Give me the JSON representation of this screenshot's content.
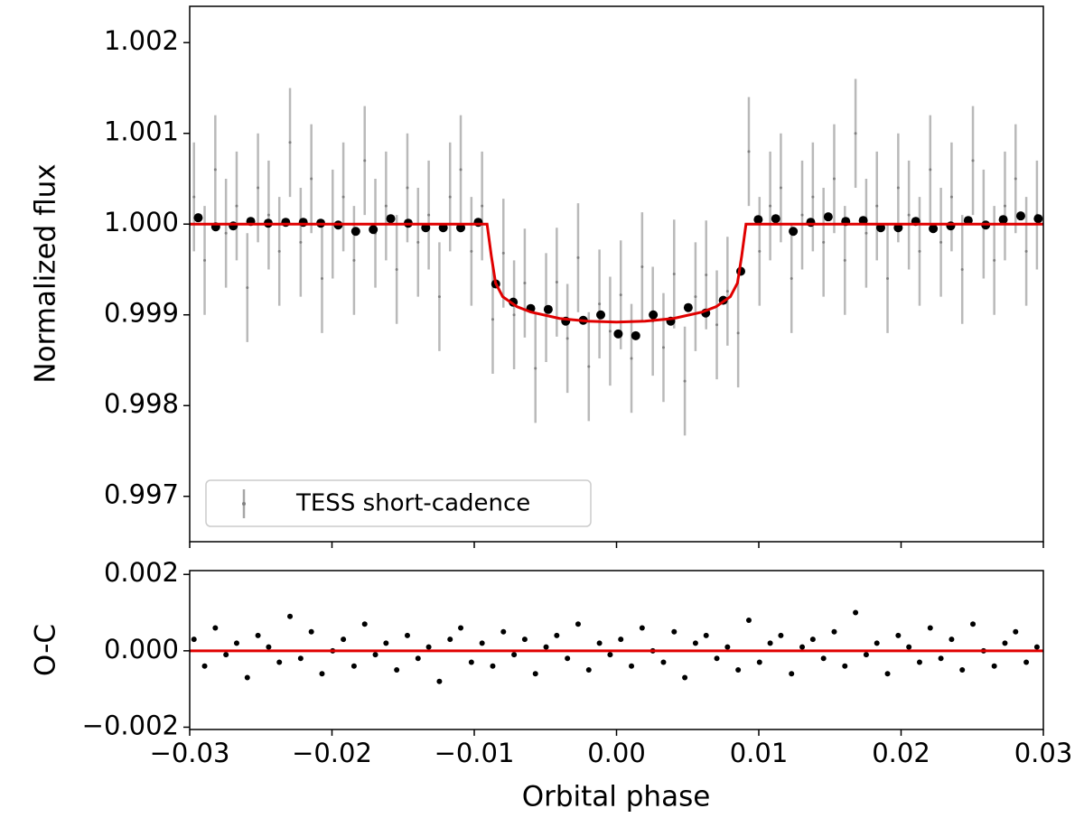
{
  "chart_data": [
    {
      "type": "scatter",
      "ylabel": "Normalized flux",
      "xlim": [
        -0.03,
        0.03
      ],
      "ylim": [
        0.9965,
        1.0024
      ],
      "yticks": [
        0.997,
        0.998,
        0.999,
        {
          "value": 1,
          "label": "1.000"
        },
        1.001,
        1.002
      ],
      "legend": "lower left",
      "series": [
        {
          "type": "errorbar",
          "name": "TESS short-cadence",
          "color": "#808080",
          "yerr": 0.0006,
          "x": [
            -0.0297,
            -0.02895,
            -0.0282,
            -0.02745,
            -0.0267,
            -0.02595,
            -0.0252,
            -0.02445,
            -0.0237,
            -0.02295,
            -0.0222,
            -0.02145,
            -0.0207,
            -0.01995,
            -0.0192,
            -0.01845,
            -0.0177,
            -0.01695,
            -0.0162,
            -0.01545,
            -0.0147,
            -0.01395,
            -0.0132,
            -0.01245,
            -0.0117,
            -0.01095,
            -0.0102,
            -0.00945,
            -0.0087,
            -0.00795,
            -0.0072,
            -0.00645,
            -0.0057,
            -0.00495,
            -0.0042,
            -0.00345,
            -0.0027,
            -0.00195,
            -0.0012,
            -0.00045,
            0.0003,
            0.00105,
            0.0018,
            0.00255,
            0.0033,
            0.00405,
            0.0048,
            0.00555,
            0.0063,
            0.00705,
            0.0078,
            0.00855,
            0.0093,
            0.01005,
            0.0108,
            0.01155,
            0.0123,
            0.01305,
            0.0138,
            0.01455,
            0.0153,
            0.01605,
            0.0168,
            0.01755,
            0.0183,
            0.01905,
            0.0198,
            0.02055,
            0.0213,
            0.02205,
            0.0228,
            0.02355,
            0.0243,
            0.02505,
            0.0258,
            0.02655,
            0.0273,
            0.02805,
            0.0288,
            0.02955
          ],
          "values": [
            1.0003,
            0.9996,
            1.0006,
            0.9999,
            1.0002,
            0.9993,
            1.0004,
            1.0001,
            0.9997,
            1.0009,
            0.9998,
            1.0005,
            0.9994,
            1.0,
            1.0003,
            0.9996,
            1.0007,
            0.9999,
            1.0002,
            0.9995,
            1.0004,
            0.9998,
            1.0001,
            0.9992,
            1.0003,
            1.0006,
            0.9997,
            1.0002,
            0.99895,
            0.99968,
            0.999,
            0.99935,
            0.99841,
            0.99908,
            0.99936,
            0.99874,
            0.99963,
            0.99843,
            0.99912,
            0.99882,
            0.99922,
            0.99852,
            0.99953,
            0.99893,
            0.99864,
            0.99945,
            0.99827,
            0.9992,
            0.99944,
            0.99889,
            0.99926,
            0.9988,
            1.0008,
            0.9997,
            1.0002,
            1.0004,
            0.9994,
            1.0001,
            1.0003,
            0.9998,
            1.0005,
            0.9996,
            1.001,
            0.9999,
            1.0002,
            0.9994,
            1.0004,
            1.0001,
            0.9997,
            1.0006,
            0.9998,
            1.0003,
            0.9995,
            1.0007,
            1.0,
            0.9996,
            1.0002,
            1.0005,
            0.9997,
            1.0001
          ]
        },
        {
          "type": "scatter",
          "color": "#000000",
          "x": [
            -0.0294,
            -0.02817,
            -0.02694,
            -0.02571,
            -0.02448,
            -0.02325,
            -0.02202,
            -0.02079,
            -0.01956,
            -0.01833,
            -0.0171,
            -0.01587,
            -0.01464,
            -0.01341,
            -0.01218,
            -0.01095,
            -0.00972,
            -0.00849,
            -0.00726,
            -0.00603,
            -0.0048,
            -0.00357,
            -0.00234,
            -0.00111,
            0.00012,
            0.00135,
            0.00258,
            0.00381,
            0.00504,
            0.00627,
            0.0075,
            0.00873,
            0.00996,
            0.01119,
            0.01242,
            0.01365,
            0.01488,
            0.01611,
            0.01734,
            0.01857,
            0.0198,
            0.02103,
            0.02226,
            0.02349,
            0.02472,
            0.02595,
            0.02718,
            0.02841,
            0.02964
          ],
          "values": [
            1.00007,
            0.99997,
            0.99998,
            1.00003,
            1.00001,
            1.00002,
            1.00002,
            1.00001,
            0.99999,
            0.99992,
            0.99994,
            1.00006,
            1.00001,
            0.99996,
            0.99996,
            0.99996,
            1.00002,
            0.99934,
            0.99914,
            0.99907,
            0.99906,
            0.99893,
            0.99894,
            0.999,
            0.99879,
            0.99877,
            0.999,
            0.99893,
            0.99908,
            0.99902,
            0.99916,
            0.99948,
            1.00005,
            1.00006,
            0.99992,
            1.00002,
            1.00008,
            1.00003,
            1.00004,
            0.99996,
            0.99996,
            1.00003,
            0.99995,
            0.99998,
            1.00004,
            0.99999,
            1.00005,
            1.00009,
            1.00006
          ]
        },
        {
          "type": "line",
          "color": "#e00000",
          "x": [
            -0.03,
            -0.0091,
            -0.0088,
            -0.0085,
            -0.008,
            -0.007,
            -0.006,
            -0.004,
            -0.002,
            0,
            0.002,
            0.004,
            0.006,
            0.007,
            0.008,
            0.0085,
            0.0088,
            0.0091,
            0.03
          ],
          "values": [
            1,
            1,
            0.99965,
            0.99935,
            0.9992,
            0.99909,
            0.99903,
            0.99896,
            0.99893,
            0.99892,
            0.99893,
            0.99896,
            0.99903,
            0.99909,
            0.9992,
            0.99935,
            0.99965,
            1,
            1
          ]
        }
      ]
    },
    {
      "type": "scatter",
      "ylabel": "O-C",
      "xlabel": "Orbital phase",
      "xlim": [
        -0.03,
        0.03
      ],
      "ylim": [
        -0.00206,
        0.0021
      ],
      "yticks": [
        {
          "value": -0.002,
          "label": "−0.002"
        },
        {
          "value": 0,
          "label": "0.000"
        },
        0.002
      ],
      "xticks": [
        {
          "value": -0.03,
          "label": "−0.03"
        },
        {
          "value": -0.02,
          "label": "−0.02"
        },
        {
          "value": -0.01,
          "label": "−0.01"
        },
        {
          "value": 0,
          "label": "0.00"
        },
        0.01,
        0.02,
        0.03
      ],
      "series": [
        {
          "type": "scatter",
          "color": "#000000",
          "x": [
            -0.0297,
            -0.02895,
            -0.0282,
            -0.02745,
            -0.0267,
            -0.02595,
            -0.0252,
            -0.02445,
            -0.0237,
            -0.02295,
            -0.0222,
            -0.02145,
            -0.0207,
            -0.01995,
            -0.0192,
            -0.01845,
            -0.0177,
            -0.01695,
            -0.0162,
            -0.01545,
            -0.0147,
            -0.01395,
            -0.0132,
            -0.01245,
            -0.0117,
            -0.01095,
            -0.0102,
            -0.00945,
            -0.0087,
            -0.00795,
            -0.0072,
            -0.00645,
            -0.0057,
            -0.00495,
            -0.0042,
            -0.00345,
            -0.0027,
            -0.00195,
            -0.0012,
            -0.00045,
            0.0003,
            0.00105,
            0.0018,
            0.00255,
            0.0033,
            0.00405,
            0.0048,
            0.00555,
            0.0063,
            0.00705,
            0.0078,
            0.00855,
            0.0093,
            0.01005,
            0.0108,
            0.01155,
            0.0123,
            0.01305,
            0.0138,
            0.01455,
            0.0153,
            0.01605,
            0.0168,
            0.01755,
            0.0183,
            0.01905,
            0.0198,
            0.02055,
            0.0213,
            0.02205,
            0.0228,
            0.02355,
            0.0243,
            0.02505,
            0.0258,
            0.02655,
            0.0273,
            0.02805,
            0.0288,
            0.02955
          ],
          "values": [
            0.0003,
            -0.0004,
            0.0006,
            -0.0001,
            0.0002,
            -0.0007,
            0.0004,
            0.0001,
            -0.0003,
            0.0009,
            -0.0002,
            0.0005,
            -0.0006,
            0.0,
            0.0003,
            -0.0004,
            0.0007,
            -0.0001,
            0.0002,
            -0.0005,
            0.0004,
            -0.0002,
            0.0001,
            -0.0008,
            0.0003,
            0.0006,
            -0.0003,
            0.0002,
            -0.0004,
            0.0005,
            -0.0001,
            0.0003,
            -0.0006,
            0.0001,
            0.0004,
            -0.0002,
            0.0007,
            -0.0005,
            0.0002,
            -0.0001,
            0.0003,
            -0.0004,
            0.0006,
            0.0,
            -0.0003,
            0.0005,
            -0.0007,
            0.0002,
            0.0004,
            -0.0002,
            0.0001,
            -0.0005,
            0.0008,
            -0.0003,
            0.0002,
            0.0004,
            -0.0006,
            0.0001,
            0.0003,
            -0.0002,
            0.0005,
            -0.0004,
            0.001,
            -0.0001,
            0.0002,
            -0.0006,
            0.0004,
            0.0001,
            -0.0003,
            0.0006,
            -0.0002,
            0.0003,
            -0.0005,
            0.0007,
            0.0,
            -0.0004,
            0.0002,
            0.0005,
            -0.0003,
            0.0001
          ]
        },
        {
          "type": "line",
          "color": "#e00000",
          "x": [
            -0.03,
            0.03
          ],
          "values": [
            0,
            0
          ]
        }
      ]
    }
  ]
}
